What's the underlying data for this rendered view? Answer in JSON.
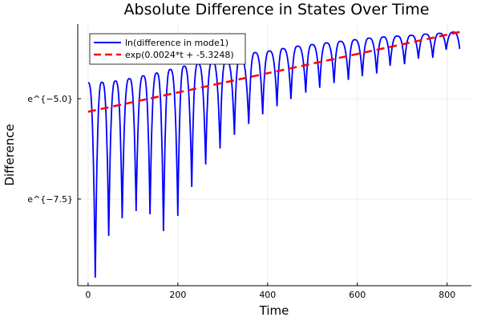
{
  "chart_data": {
    "type": "line",
    "title": "Absolute Difference in States Over Time",
    "xlabel": "Time",
    "ylabel": "Difference",
    "xlim": [
      -23,
      854
    ],
    "ylim": [
      -9.66,
      -3.14
    ],
    "y_scale": "log (natural), values given as ln",
    "x_ticks": [
      0,
      200,
      400,
      600,
      800
    ],
    "x_tick_labels": [
      "0",
      "200",
      "400",
      "600",
      "800"
    ],
    "y_ticks": [
      -5.0,
      -7.5
    ],
    "y_tick_labels": [
      "e^{−5.0}",
      "e^{−7.5}"
    ],
    "grid": true,
    "legend_position": "top-left",
    "series": [
      {
        "name": "ln(difference in mode1)",
        "color": "#0000ff",
        "style": "solid",
        "points": [
          [
            0,
            -4.6
          ],
          [
            16,
            -9.46
          ],
          [
            31,
            -4.59
          ],
          [
            46,
            -8.42
          ],
          [
            61,
            -4.56
          ],
          [
            76,
            -7.98
          ],
          [
            92,
            -4.5
          ],
          [
            107,
            -7.8
          ],
          [
            123,
            -4.43
          ],
          [
            138,
            -7.88
          ],
          [
            153,
            -4.36
          ],
          [
            168,
            -8.3
          ],
          [
            183,
            -4.27
          ],
          [
            200,
            -7.92
          ],
          [
            214,
            -4.19
          ],
          [
            231,
            -7.2
          ],
          [
            245,
            -4.13
          ],
          [
            262,
            -6.64
          ],
          [
            277,
            -4.07
          ],
          [
            294,
            -6.24
          ],
          [
            308,
            -4.04
          ],
          [
            326,
            -5.9
          ],
          [
            339,
            -3.97
          ],
          [
            358,
            -5.63
          ],
          [
            372,
            -3.85
          ],
          [
            389,
            -5.39
          ],
          [
            404,
            -3.81
          ],
          [
            421,
            -5.19
          ],
          [
            434,
            -3.75
          ],
          [
            452,
            -5.01
          ],
          [
            467,
            -3.69
          ],
          [
            485,
            -4.85
          ],
          [
            499,
            -3.65
          ],
          [
            516,
            -4.73
          ],
          [
            531,
            -3.61
          ],
          [
            548,
            -4.61
          ],
          [
            562,
            -3.57
          ],
          [
            580,
            -4.53
          ],
          [
            594,
            -3.53
          ],
          [
            611,
            -4.44
          ],
          [
            626,
            -3.49
          ],
          [
            643,
            -4.37
          ],
          [
            658,
            -3.46
          ],
          [
            673,
            -4.18
          ],
          [
            689,
            -3.44
          ],
          [
            705,
            -4.14
          ],
          [
            720,
            -3.42
          ],
          [
            736,
            -4.0
          ],
          [
            752,
            -3.39
          ],
          [
            768,
            -3.98
          ],
          [
            783,
            -3.37
          ],
          [
            798,
            -3.78
          ],
          [
            814,
            -3.34
          ],
          [
            828,
            -3.76
          ]
        ]
      },
      {
        "name": "exp(0.0024*t + -5.3248)",
        "color": "#ff0000",
        "style": "dashed",
        "slope": 0.0024,
        "intercept": -5.3248,
        "t_range": [
          0,
          830
        ]
      }
    ]
  }
}
